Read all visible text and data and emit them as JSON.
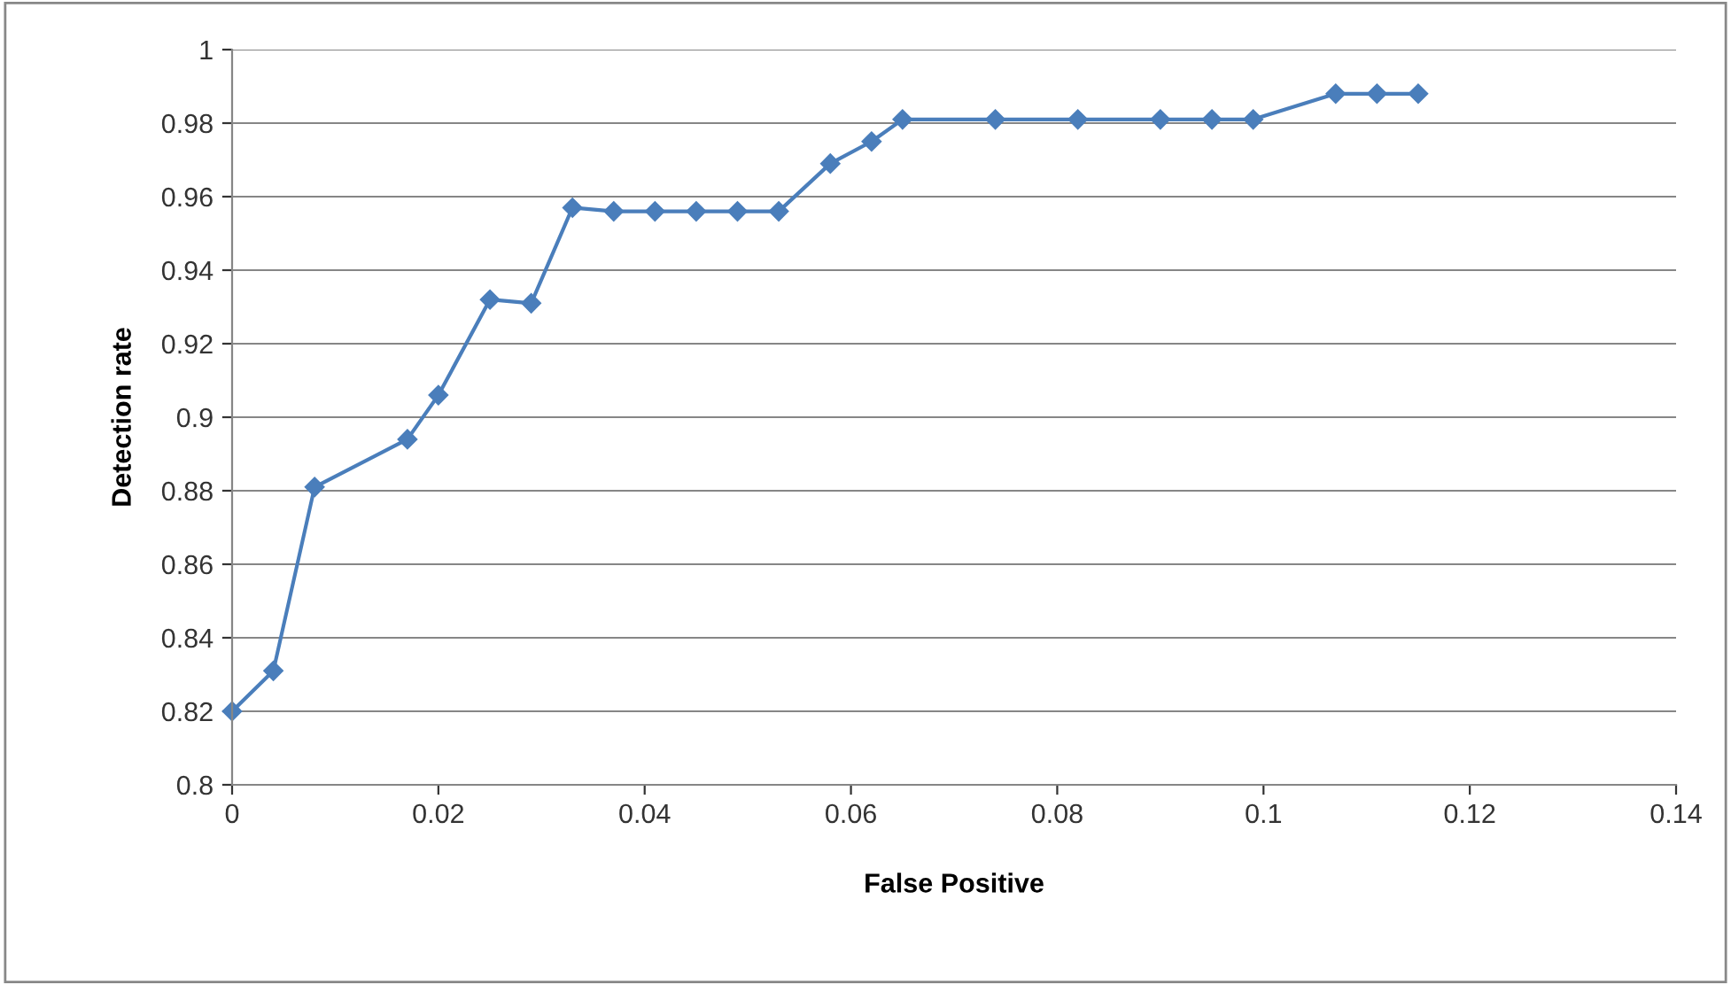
{
  "chart_data": {
    "type": "line",
    "xlabel": "False Positive",
    "ylabel": "Detection rate",
    "x": [
      0,
      0.004,
      0.008,
      0.017,
      0.02,
      0.025,
      0.029,
      0.033,
      0.037,
      0.041,
      0.045,
      0.049,
      0.053,
      0.058,
      0.062,
      0.065,
      0.074,
      0.082,
      0.09,
      0.095,
      0.099,
      0.107,
      0.111,
      0.115
    ],
    "series": [
      {
        "color": "#4a7ebb",
        "values": [
          0.82,
          0.831,
          0.881,
          0.894,
          0.906,
          0.932,
          0.931,
          0.957,
          0.956,
          0.956,
          0.956,
          0.956,
          0.956,
          0.969,
          0.975,
          0.981,
          0.981,
          0.981,
          0.981,
          0.981,
          0.981,
          0.988,
          0.988,
          0.988
        ]
      }
    ],
    "xlim": [
      0,
      0.14
    ],
    "xticks": [
      0,
      0.02,
      0.04,
      0.06,
      0.08,
      0.1,
      0.12,
      0.14
    ],
    "ylim": [
      0.8,
      1
    ],
    "yticks": [
      0.8,
      0.82,
      0.84,
      0.86,
      0.88,
      0.9,
      0.92,
      0.94,
      0.96,
      0.98,
      1
    ],
    "grid": "y",
    "marker": "diamond",
    "line_style": "solid",
    "legend": false
  }
}
